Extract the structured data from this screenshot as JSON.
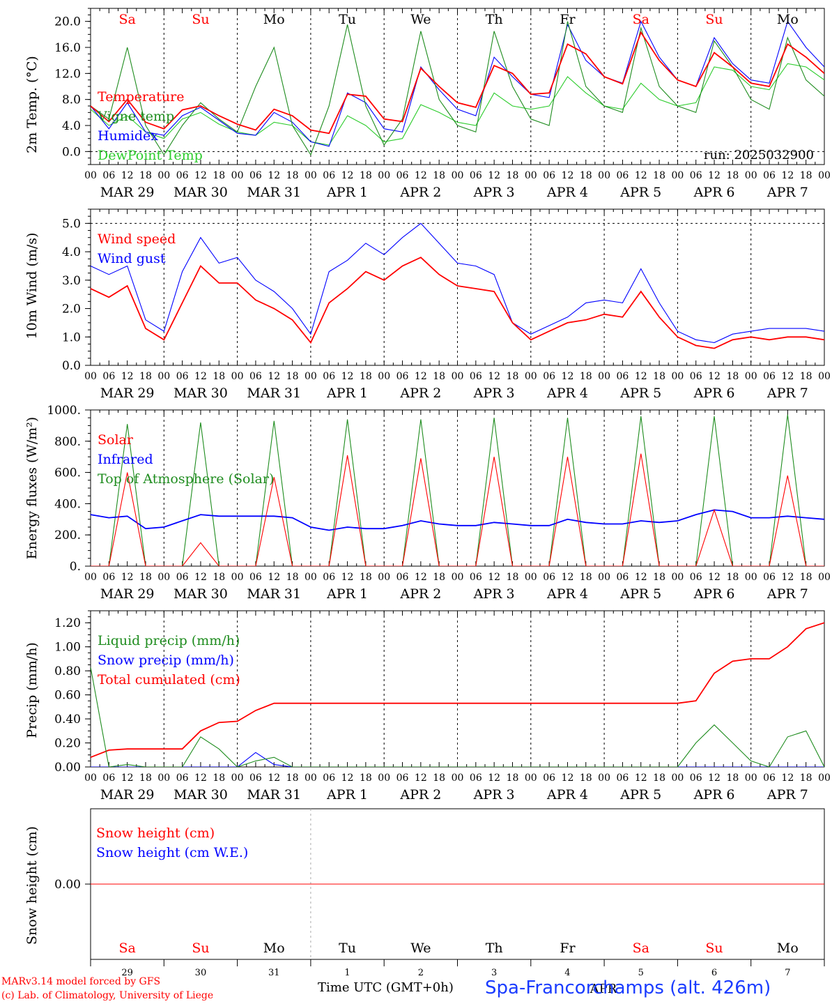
{
  "chart_data": [
    {
      "type": "line",
      "ylabel": "2m Temp. (°C)",
      "ylim": [
        -2,
        22
      ],
      "yticks": [
        "0.0",
        "4.0",
        "8.0",
        "12.0",
        "16.0",
        "20.0"
      ],
      "run_label": "run: 2025032900",
      "x_hours": [
        0,
        6,
        12,
        18,
        24,
        30,
        36,
        42,
        48,
        54,
        60,
        66,
        72,
        78,
        84,
        90,
        96,
        102,
        108,
        114,
        120,
        126,
        132,
        138,
        144,
        150,
        156,
        162,
        168,
        174,
        180,
        186,
        192,
        198,
        204,
        210,
        216,
        222,
        228,
        234,
        240
      ],
      "series": [
        {
          "name": "Temperature",
          "color": "#ff0000",
          "values": [
            7.0,
            4.6,
            8.0,
            4.5,
            3.5,
            6.4,
            7.0,
            5.5,
            4.2,
            3.3,
            6.5,
            5.5,
            3.3,
            2.8,
            8.8,
            8.5,
            5.0,
            4.6,
            12.8,
            10.0,
            7.5,
            6.8,
            13.2,
            12.0,
            8.8,
            9.0,
            16.5,
            15.0,
            11.5,
            10.4,
            18.3,
            14.0,
            11.0,
            10.0,
            15.2,
            13.0,
            10.5,
            10.0,
            16.5,
            14.5,
            12.0
          ]
        },
        {
          "name": "Vigne temp",
          "color": "#1e8c1e",
          "values": [
            7.0,
            5.0,
            16.0,
            4.0,
            -0.5,
            4.0,
            7.5,
            5.0,
            3.0,
            10.0,
            16.0,
            4.0,
            -0.5,
            7.0,
            19.5,
            7.0,
            1.0,
            5.0,
            18.5,
            8.0,
            4.0,
            3.0,
            18.5,
            10.0,
            5.0,
            4.0,
            20.0,
            10.0,
            7.0,
            6.0,
            19.0,
            10.0,
            7.0,
            6.0,
            17.0,
            13.0,
            8.0,
            6.5,
            17.5,
            11.0,
            8.5
          ]
        },
        {
          "name": "Humidex",
          "color": "#0000ff",
          "values": [
            7.0,
            3.5,
            7.5,
            3.0,
            2.5,
            5.5,
            6.8,
            4.8,
            2.8,
            2.5,
            6.0,
            4.5,
            1.5,
            0.8,
            9.0,
            7.5,
            3.5,
            3.0,
            13.0,
            9.5,
            6.5,
            5.5,
            14.5,
            11.5,
            8.8,
            8.3,
            19.5,
            14.0,
            11.5,
            10.5,
            20.0,
            14.5,
            11.0,
            10.0,
            17.5,
            13.5,
            11.0,
            10.5,
            20.0,
            16.0,
            13.0
          ]
        },
        {
          "name": "DewPoint Temp",
          "color": "#2ccc2c",
          "values": [
            6.5,
            4.0,
            5.5,
            3.0,
            2.0,
            5.0,
            6.0,
            4.2,
            3.0,
            2.5,
            4.5,
            4.0,
            1.5,
            1.0,
            5.5,
            4.0,
            1.5,
            2.0,
            7.2,
            6.0,
            4.5,
            4.0,
            9.0,
            7.0,
            6.5,
            7.0,
            11.5,
            9.0,
            7.0,
            6.5,
            10.5,
            8.0,
            7.0,
            7.5,
            13.0,
            12.5,
            10.0,
            9.5,
            13.5,
            13.0,
            11.0
          ]
        }
      ]
    },
    {
      "type": "line",
      "ylabel": "10m Wind (m/s)",
      "ylim": [
        0,
        5.5
      ],
      "yticks": [
        "0.0",
        "1.0",
        "2.0",
        "3.0",
        "4.0",
        "5.0"
      ],
      "x_hours": [
        0,
        6,
        12,
        18,
        24,
        30,
        36,
        42,
        48,
        54,
        60,
        66,
        72,
        78,
        84,
        90,
        96,
        102,
        108,
        114,
        120,
        126,
        132,
        138,
        144,
        150,
        156,
        162,
        168,
        174,
        180,
        186,
        192,
        198,
        204,
        210,
        216,
        222,
        228,
        234,
        240
      ],
      "series": [
        {
          "name": "Wind speed",
          "color": "#ff0000",
          "values": [
            2.7,
            2.4,
            2.8,
            1.3,
            0.9,
            2.2,
            3.5,
            2.9,
            2.9,
            2.3,
            2.0,
            1.6,
            0.8,
            2.2,
            2.7,
            3.3,
            3.0,
            3.5,
            3.8,
            3.2,
            2.8,
            2.7,
            2.6,
            1.5,
            0.9,
            1.2,
            1.5,
            1.6,
            1.8,
            1.7,
            2.6,
            1.7,
            1.0,
            0.7,
            0.6,
            0.9,
            1.0,
            0.9,
            1.0,
            1.0,
            0.9
          ]
        },
        {
          "name": "Wind gust",
          "color": "#0000ff",
          "values": [
            3.5,
            3.2,
            3.5,
            1.6,
            1.2,
            3.3,
            4.5,
            3.6,
            3.8,
            3.0,
            2.6,
            2.0,
            1.1,
            3.3,
            3.7,
            4.3,
            3.9,
            4.5,
            5.0,
            4.3,
            3.6,
            3.5,
            3.2,
            1.5,
            1.1,
            1.4,
            1.7,
            2.2,
            2.3,
            2.2,
            3.4,
            2.2,
            1.2,
            0.9,
            0.8,
            1.1,
            1.2,
            1.3,
            1.3,
            1.3,
            1.2
          ]
        }
      ]
    },
    {
      "type": "line",
      "ylabel": "Energy fluxes (W/m²)",
      "ylim": [
        0,
        1000
      ],
      "yticks": [
        "0.",
        "200.",
        "400.",
        "600.",
        "800.",
        "1000."
      ],
      "x_hours": [
        0,
        6,
        12,
        18,
        24,
        30,
        36,
        42,
        48,
        54,
        60,
        66,
        72,
        78,
        84,
        90,
        96,
        102,
        108,
        114,
        120,
        126,
        132,
        138,
        144,
        150,
        156,
        162,
        168,
        174,
        180,
        186,
        192,
        198,
        204,
        210,
        216,
        222,
        228,
        234,
        240
      ],
      "series": [
        {
          "name": "Solar",
          "color": "#ff0000",
          "values": [
            0,
            0,
            600,
            0,
            0,
            0,
            150,
            0,
            0,
            0,
            570,
            0,
            0,
            0,
            710,
            0,
            0,
            0,
            690,
            0,
            0,
            0,
            700,
            0,
            0,
            0,
            700,
            0,
            0,
            0,
            720,
            0,
            0,
            0,
            360,
            0,
            0,
            0,
            580,
            0,
            0
          ]
        },
        {
          "name": "Infrared",
          "color": "#0000ff",
          "values": [
            330,
            310,
            320,
            240,
            250,
            290,
            330,
            320,
            320,
            320,
            320,
            310,
            250,
            230,
            250,
            240,
            240,
            260,
            290,
            270,
            260,
            260,
            280,
            270,
            260,
            260,
            300,
            280,
            270,
            270,
            290,
            280,
            290,
            330,
            360,
            350,
            310,
            310,
            320,
            310,
            300
          ]
        },
        {
          "name": "Top of Atmosphere (Solar)",
          "color": "#1e8c1e",
          "values": [
            0,
            0,
            910,
            0,
            0,
            0,
            920,
            0,
            0,
            0,
            930,
            0,
            0,
            0,
            940,
            0,
            0,
            0,
            940,
            0,
            0,
            0,
            950,
            0,
            0,
            0,
            950,
            0,
            0,
            0,
            960,
            0,
            0,
            0,
            960,
            0,
            0,
            0,
            970,
            0,
            0
          ]
        }
      ]
    },
    {
      "type": "line",
      "ylabel": "Precip (mm/h)",
      "ylim": [
        0,
        1.3
      ],
      "yticks": [
        "0.00",
        "0.20",
        "0.40",
        "0.60",
        "0.80",
        "1.00",
        "1.20"
      ],
      "x_hours": [
        0,
        6,
        12,
        18,
        24,
        30,
        36,
        42,
        48,
        54,
        60,
        66,
        72,
        78,
        84,
        90,
        96,
        102,
        108,
        114,
        120,
        126,
        132,
        138,
        144,
        150,
        156,
        162,
        168,
        174,
        180,
        186,
        192,
        198,
        204,
        210,
        216,
        222,
        228,
        234,
        240
      ],
      "series": [
        {
          "name": "Liquid precip (mm/h)",
          "color": "#1e8c1e",
          "values": [
            0.83,
            0.0,
            0.02,
            0.0,
            0.0,
            0.0,
            0.25,
            0.15,
            0.0,
            0.05,
            0.08,
            0.0,
            0.0,
            0.0,
            0.0,
            0.0,
            0.0,
            0.0,
            0.0,
            0.0,
            0.0,
            0.0,
            0.0,
            0.0,
            0.0,
            0.0,
            0.0,
            0.0,
            0.0,
            0.0,
            0.0,
            0.0,
            0.0,
            0.2,
            0.35,
            0.2,
            0.05,
            0.0,
            0.25,
            0.3,
            0.0
          ]
        },
        {
          "name": "Snow precip (mm/h)",
          "color": "#0000ff",
          "values": [
            0.0,
            0.0,
            0.0,
            0.0,
            0.0,
            0.0,
            0.0,
            0.0,
            0.0,
            0.12,
            0.02,
            0.0,
            0.0,
            0.0,
            0.0,
            0.0,
            0.0,
            0.0,
            0.0,
            0.0,
            0.0,
            0.0,
            0.0,
            0.0,
            0.0,
            0.0,
            0.0,
            0.0,
            0.0,
            0.0,
            0.0,
            0.0,
            0.0,
            0.0,
            0.0,
            0.0,
            0.0,
            0.0,
            0.0,
            0.0,
            0.0
          ]
        },
        {
          "name": "Total cumulated (cm)",
          "color": "#ff0000",
          "values": [
            0.08,
            0.14,
            0.15,
            0.15,
            0.15,
            0.15,
            0.3,
            0.37,
            0.38,
            0.47,
            0.53,
            0.53,
            0.53,
            0.53,
            0.53,
            0.53,
            0.53,
            0.53,
            0.53,
            0.53,
            0.53,
            0.53,
            0.53,
            0.53,
            0.53,
            0.53,
            0.53,
            0.53,
            0.53,
            0.53,
            0.53,
            0.53,
            0.53,
            0.55,
            0.78,
            0.88,
            0.9,
            0.9,
            1.0,
            1.15,
            1.2
          ]
        }
      ]
    },
    {
      "type": "line",
      "ylabel": "Snow height (cm)",
      "ylim": [
        -1,
        1
      ],
      "yticks": [
        "0.00"
      ],
      "x_hours": [
        0,
        240
      ],
      "series": [
        {
          "name": "Snow height (cm)",
          "color": "#ff0000",
          "values": [
            0,
            0
          ]
        },
        {
          "name": "Snow height (cm W.E.)",
          "color": "#0000ff",
          "values": [
            0,
            0
          ]
        }
      ]
    }
  ],
  "days": [
    {
      "weekday": "Sa",
      "weekend": true,
      "date": "MAR 29",
      "daynum": "29"
    },
    {
      "weekday": "Su",
      "weekend": true,
      "date": "MAR 30",
      "daynum": "30"
    },
    {
      "weekday": "Mo",
      "weekend": false,
      "date": "MAR 31",
      "daynum": "31"
    },
    {
      "weekday": "Tu",
      "weekend": false,
      "date": "APR  1",
      "daynum": "1"
    },
    {
      "weekday": "We",
      "weekend": false,
      "date": "APR  2",
      "daynum": "2"
    },
    {
      "weekday": "Th",
      "weekend": false,
      "date": "APR  3",
      "daynum": "3"
    },
    {
      "weekday": "Fr",
      "weekend": false,
      "date": "APR  4",
      "daynum": "4"
    },
    {
      "weekday": "Sa",
      "weekend": true,
      "date": "APR  5",
      "daynum": "5"
    },
    {
      "weekday": "Su",
      "weekend": true,
      "date": "APR  6",
      "daynum": "6"
    },
    {
      "weekday": "Mo",
      "weekend": false,
      "date": "APR  7",
      "daynum": "7"
    }
  ],
  "hour_labels": [
    "00",
    "06",
    "12",
    "18"
  ],
  "month_label": "APR",
  "footer": {
    "model": "MARv3.14 model forced by GFS",
    "copyright": "(c) Lab. of Climatology, University of Liege",
    "time_label": "Time UTC (GMT+0h)",
    "station": "Spa-Francorchamps (alt. 426m)"
  },
  "colors": {
    "weekend": "#ff0000",
    "weekday": "#000000",
    "axis": "#000000"
  }
}
